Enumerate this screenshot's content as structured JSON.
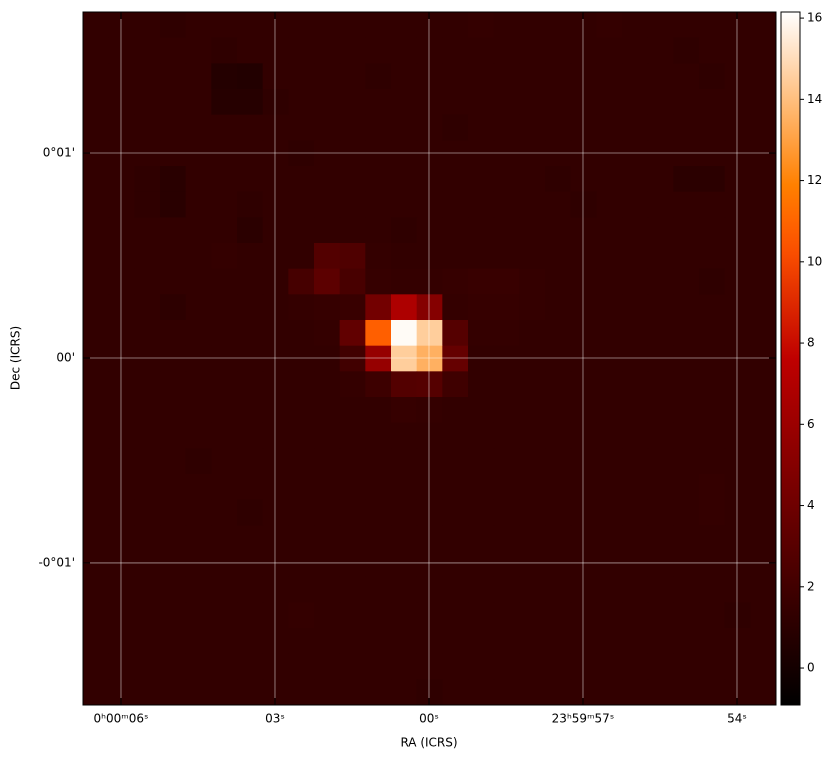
{
  "chart_data": {
    "type": "heatmap",
    "x_label": "RA (ICRS)",
    "y_label": "Dec (ICRS)",
    "xlim": [
      6.74,
      -6.76
    ],
    "ylim": [
      -1.693,
      1.688
    ],
    "xticks": [
      {
        "value": 6,
        "label": "0ʰ00ᵐ06ˢ"
      },
      {
        "value": 3,
        "label": "03ˢ"
      },
      {
        "value": 0,
        "label": "00ˢ"
      },
      {
        "value": -3,
        "label": "23ʰ59ᵐ57ˢ"
      },
      {
        "value": -6,
        "label": "54ˢ"
      }
    ],
    "yticks": [
      {
        "value": 1,
        "label": "0°01'"
      },
      {
        "value": 0,
        "label": "00'"
      },
      {
        "value": -1,
        "label": "-0°01'"
      }
    ],
    "grid": true,
    "colormap": "gist_heat",
    "clim": [
      -0.91,
      16.15
    ],
    "cticks": [
      0,
      2,
      4,
      6,
      8,
      10,
      12,
      14,
      16
    ],
    "z": [
      [
        1.3,
        1.3,
        1.3,
        1.2,
        1.3,
        1.3,
        1.3,
        1.3,
        1.3,
        1.3,
        1.3,
        1.3,
        1.3,
        1.3,
        1.3,
        1.4,
        1.3,
        1.3,
        1.3,
        1.3,
        1.4,
        1.3,
        1.3,
        1.3,
        1.3,
        1.3,
        1.3
      ],
      [
        1.3,
        1.3,
        1.3,
        1.3,
        1.3,
        1.2,
        1.3,
        1.3,
        1.3,
        1.3,
        1.3,
        1.3,
        1.3,
        1.3,
        1.3,
        1.3,
        1.3,
        1.3,
        1.3,
        1.3,
        1.3,
        1.3,
        1.3,
        1.2,
        1.3,
        1.3,
        1.3
      ],
      [
        1.3,
        1.3,
        1.3,
        1.3,
        1.3,
        0.7,
        0.6,
        1.3,
        1.3,
        1.3,
        1.3,
        1.2,
        1.3,
        1.3,
        1.3,
        1.3,
        1.3,
        1.3,
        1.3,
        1.3,
        1.3,
        1.3,
        1.3,
        1.3,
        1.2,
        1.3,
        1.3
      ],
      [
        1.3,
        1.3,
        1.3,
        1.3,
        1.3,
        0.8,
        0.8,
        1.2,
        1.3,
        1.3,
        1.3,
        1.3,
        1.3,
        1.3,
        1.3,
        1.3,
        1.3,
        1.3,
        1.3,
        1.3,
        1.3,
        1.3,
        1.3,
        1.3,
        1.3,
        1.3,
        1.3
      ],
      [
        1.3,
        1.3,
        1.3,
        1.3,
        1.3,
        1.3,
        1.3,
        1.3,
        1.3,
        1.3,
        1.3,
        1.3,
        1.3,
        1.3,
        1.2,
        1.3,
        1.3,
        1.3,
        1.3,
        1.3,
        1.3,
        1.3,
        1.3,
        1.3,
        1.3,
        1.3,
        1.3
      ],
      [
        1.3,
        1.3,
        1.3,
        1.3,
        1.3,
        1.3,
        1.3,
        1.3,
        1.2,
        1.3,
        1.3,
        1.3,
        1.3,
        1.3,
        1.3,
        1.3,
        1.3,
        1.3,
        1.3,
        1.3,
        1.3,
        1.3,
        1.3,
        1.3,
        1.3,
        1.3,
        1.3
      ],
      [
        1.3,
        1.3,
        1.2,
        0.9,
        1.3,
        1.3,
        1.3,
        1.3,
        1.3,
        1.3,
        1.3,
        1.3,
        1.3,
        1.3,
        1.3,
        1.3,
        1.3,
        1.3,
        1.2,
        1.3,
        1.3,
        1.3,
        1.3,
        1.0,
        1.0,
        1.3,
        1.3
      ],
      [
        1.3,
        1.3,
        1.2,
        0.9,
        1.3,
        1.3,
        1.2,
        1.3,
        1.3,
        1.3,
        1.3,
        1.3,
        1.3,
        1.3,
        1.3,
        1.3,
        1.3,
        1.3,
        1.3,
        1.2,
        1.3,
        1.3,
        1.3,
        1.3,
        1.3,
        1.3,
        1.3
      ],
      [
        1.3,
        1.3,
        1.3,
        1.3,
        1.3,
        1.3,
        1.0,
        1.3,
        1.3,
        1.3,
        1.3,
        1.3,
        1.2,
        1.3,
        1.3,
        1.3,
        1.3,
        1.3,
        1.3,
        1.3,
        1.3,
        1.3,
        1.3,
        1.3,
        1.3,
        1.3,
        1.3
      ],
      [
        1.3,
        1.3,
        1.3,
        1.3,
        1.3,
        1.4,
        1.3,
        1.3,
        1.3,
        2.8,
        2.6,
        1.4,
        1.3,
        1.3,
        1.3,
        1.3,
        1.3,
        1.3,
        1.3,
        1.3,
        1.3,
        1.3,
        1.3,
        1.3,
        1.3,
        1.3,
        1.3
      ],
      [
        1.3,
        1.3,
        1.3,
        1.3,
        1.3,
        1.3,
        1.3,
        1.3,
        2.2,
        3.2,
        2.3,
        1.5,
        1.4,
        1.4,
        1.5,
        1.6,
        1.6,
        1.4,
        1.3,
        1.3,
        1.3,
        1.3,
        1.3,
        1.3,
        1.2,
        1.3,
        1.3
      ],
      [
        1.3,
        1.3,
        1.3,
        1.1,
        1.3,
        1.3,
        1.3,
        1.3,
        1.4,
        1.5,
        1.6,
        4.2,
        6.8,
        5.0,
        1.4,
        1.5,
        1.5,
        1.4,
        1.3,
        1.3,
        1.3,
        1.3,
        1.3,
        1.3,
        1.3,
        1.3,
        1.3
      ],
      [
        1.3,
        1.3,
        1.3,
        1.3,
        1.3,
        1.3,
        1.3,
        1.3,
        1.3,
        1.4,
        3.4,
        10.8,
        16.0,
        14.5,
        2.9,
        1.4,
        1.4,
        1.3,
        1.3,
        1.3,
        1.3,
        1.3,
        1.3,
        1.3,
        1.3,
        1.3,
        1.3
      ],
      [
        1.3,
        1.3,
        1.3,
        1.3,
        1.3,
        1.3,
        1.3,
        1.3,
        1.3,
        1.3,
        2.0,
        5.8,
        14.5,
        13.5,
        3.6,
        1.3,
        1.3,
        1.3,
        1.3,
        1.3,
        1.3,
        1.3,
        1.3,
        1.3,
        1.3,
        1.3,
        1.3
      ],
      [
        1.3,
        1.3,
        1.3,
        1.3,
        1.3,
        1.3,
        1.3,
        1.3,
        1.3,
        1.3,
        1.4,
        1.8,
        2.8,
        2.9,
        1.9,
        1.3,
        1.3,
        1.3,
        1.3,
        1.3,
        1.3,
        1.3,
        1.3,
        1.3,
        1.3,
        1.3,
        1.3
      ],
      [
        1.3,
        1.3,
        1.3,
        1.3,
        1.3,
        1.3,
        1.3,
        1.3,
        1.3,
        1.3,
        1.3,
        1.3,
        1.5,
        1.4,
        1.3,
        1.3,
        1.3,
        1.3,
        1.3,
        1.3,
        1.3,
        1.3,
        1.3,
        1.3,
        1.3,
        1.3,
        1.3
      ],
      [
        1.3,
        1.3,
        1.3,
        1.3,
        1.3,
        1.3,
        1.3,
        1.3,
        1.3,
        1.3,
        1.3,
        1.3,
        1.3,
        1.3,
        1.3,
        1.3,
        1.3,
        1.3,
        1.3,
        1.3,
        1.3,
        1.3,
        1.3,
        1.3,
        1.3,
        1.3,
        1.3
      ],
      [
        1.3,
        1.3,
        1.3,
        1.3,
        1.2,
        1.3,
        1.3,
        1.3,
        1.3,
        1.3,
        1.3,
        1.3,
        1.3,
        1.3,
        1.3,
        1.3,
        1.3,
        1.3,
        1.3,
        1.3,
        1.3,
        1.3,
        1.3,
        1.3,
        1.3,
        1.3,
        1.3
      ],
      [
        1.3,
        1.3,
        1.3,
        1.3,
        1.3,
        1.3,
        1.3,
        1.3,
        1.3,
        1.3,
        1.3,
        1.3,
        1.3,
        1.3,
        1.3,
        1.3,
        1.3,
        1.3,
        1.3,
        1.3,
        1.3,
        1.3,
        1.3,
        1.3,
        1.4,
        1.3,
        1.3
      ],
      [
        1.3,
        1.3,
        1.3,
        1.3,
        1.3,
        1.3,
        1.2,
        1.3,
        1.3,
        1.3,
        1.3,
        1.3,
        1.3,
        1.3,
        1.3,
        1.3,
        1.3,
        1.3,
        1.3,
        1.3,
        1.3,
        1.3,
        1.3,
        1.3,
        1.4,
        1.3,
        1.3
      ],
      [
        1.3,
        1.3,
        1.3,
        1.3,
        1.3,
        1.3,
        1.3,
        1.3,
        1.3,
        1.3,
        1.3,
        1.3,
        1.3,
        1.3,
        1.3,
        1.3,
        1.3,
        1.3,
        1.3,
        1.3,
        1.3,
        1.3,
        1.3,
        1.3,
        1.3,
        1.3,
        1.3
      ],
      [
        1.3,
        1.3,
        1.3,
        1.3,
        1.3,
        1.3,
        1.3,
        1.3,
        1.3,
        1.3,
        1.3,
        1.3,
        1.3,
        1.3,
        1.3,
        1.3,
        1.3,
        1.3,
        1.3,
        1.3,
        1.3,
        1.3,
        1.3,
        1.3,
        1.3,
        1.3,
        1.3
      ],
      [
        1.3,
        1.3,
        1.3,
        1.3,
        1.3,
        1.3,
        1.3,
        1.3,
        1.3,
        1.3,
        1.3,
        1.3,
        1.3,
        1.3,
        1.3,
        1.3,
        1.3,
        1.3,
        1.3,
        1.3,
        1.3,
        1.3,
        1.3,
        1.3,
        1.3,
        1.3,
        1.3
      ],
      [
        1.3,
        1.3,
        1.3,
        1.3,
        1.3,
        1.3,
        1.3,
        1.3,
        1.4,
        1.3,
        1.3,
        1.3,
        1.3,
        1.3,
        1.3,
        1.3,
        1.3,
        1.3,
        1.3,
        1.3,
        1.3,
        1.3,
        1.3,
        1.3,
        1.3,
        1.2,
        1.3
      ],
      [
        1.3,
        1.3,
        1.3,
        1.3,
        1.3,
        1.3,
        1.3,
        1.3,
        1.3,
        1.3,
        1.3,
        1.3,
        1.3,
        1.3,
        1.3,
        1.3,
        1.3,
        1.3,
        1.3,
        1.3,
        1.3,
        1.3,
        1.3,
        1.3,
        1.3,
        1.3,
        1.3
      ],
      [
        1.3,
        1.3,
        1.3,
        1.3,
        1.3,
        1.3,
        1.3,
        1.3,
        1.3,
        1.3,
        1.3,
        1.3,
        1.3,
        1.3,
        1.3,
        1.3,
        1.3,
        1.3,
        1.3,
        1.3,
        1.3,
        1.3,
        1.3,
        1.3,
        1.3,
        1.3,
        1.3
      ],
      [
        1.3,
        1.3,
        1.3,
        1.3,
        1.3,
        1.3,
        1.3,
        1.3,
        1.3,
        1.3,
        1.3,
        1.3,
        1.3,
        1.2,
        1.3,
        1.3,
        1.3,
        1.3,
        1.3,
        1.3,
        1.3,
        1.3,
        1.3,
        1.3,
        1.3,
        1.3,
        1.3
      ]
    ]
  }
}
